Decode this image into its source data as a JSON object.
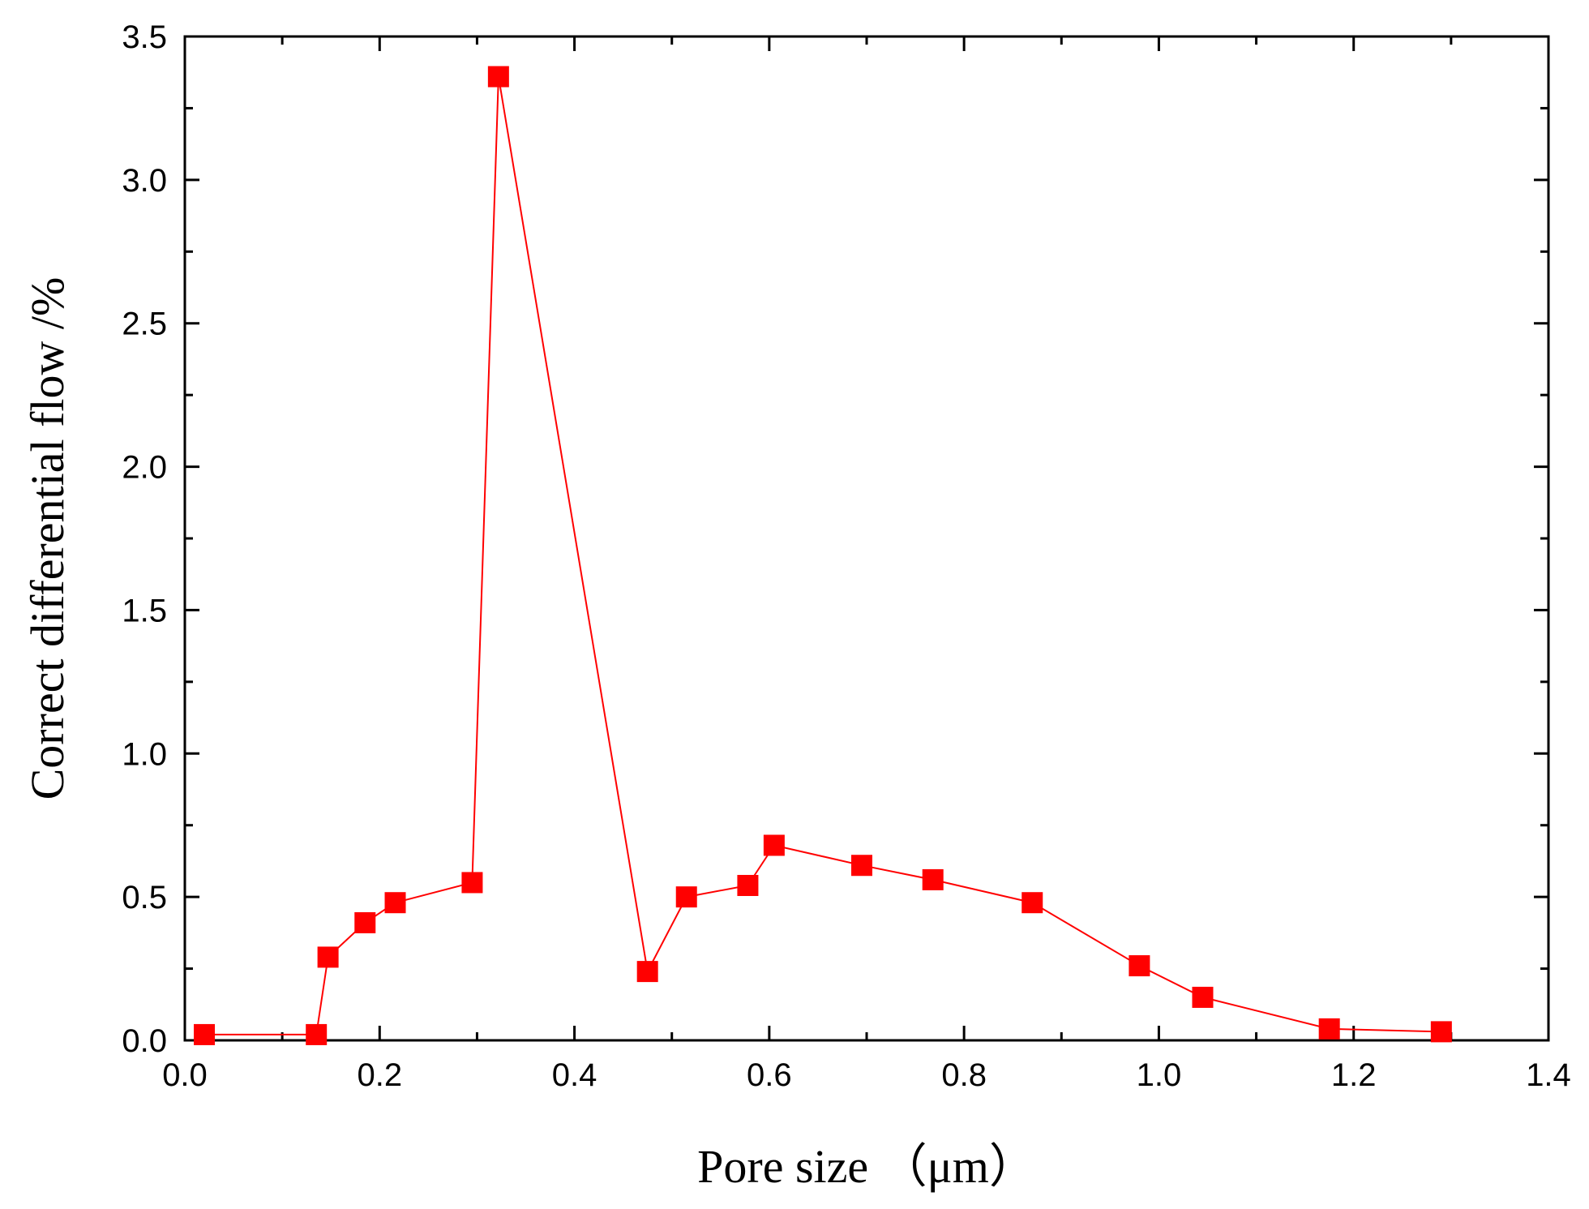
{
  "chart_data": {
    "type": "line",
    "xlabel": "Pore size （μm）",
    "ylabel": "Correct differential flow /%",
    "xlim": [
      0.0,
      1.4
    ],
    "ylim": [
      0.0,
      3.5
    ],
    "x_ticks": [
      "0.0",
      "0.2",
      "0.4",
      "0.6",
      "0.8",
      "1.0",
      "1.2",
      "1.4"
    ],
    "y_ticks": [
      "0.0",
      "0.5",
      "1.0",
      "1.5",
      "2.0",
      "2.5",
      "3.0",
      "3.5"
    ],
    "grid": false,
    "marker": "square",
    "series": [
      {
        "color": "#ff0000",
        "x": [
          0.02,
          0.135,
          0.147,
          0.185,
          0.216,
          0.295,
          0.322,
          0.475,
          0.515,
          0.578,
          0.605,
          0.695,
          0.768,
          0.87,
          0.98,
          1.045,
          1.175,
          1.29
        ],
        "y": [
          0.02,
          0.02,
          0.29,
          0.41,
          0.48,
          0.55,
          3.36,
          0.24,
          0.5,
          0.54,
          0.68,
          0.61,
          0.56,
          0.48,
          0.26,
          0.15,
          0.04,
          0.03
        ]
      }
    ]
  }
}
